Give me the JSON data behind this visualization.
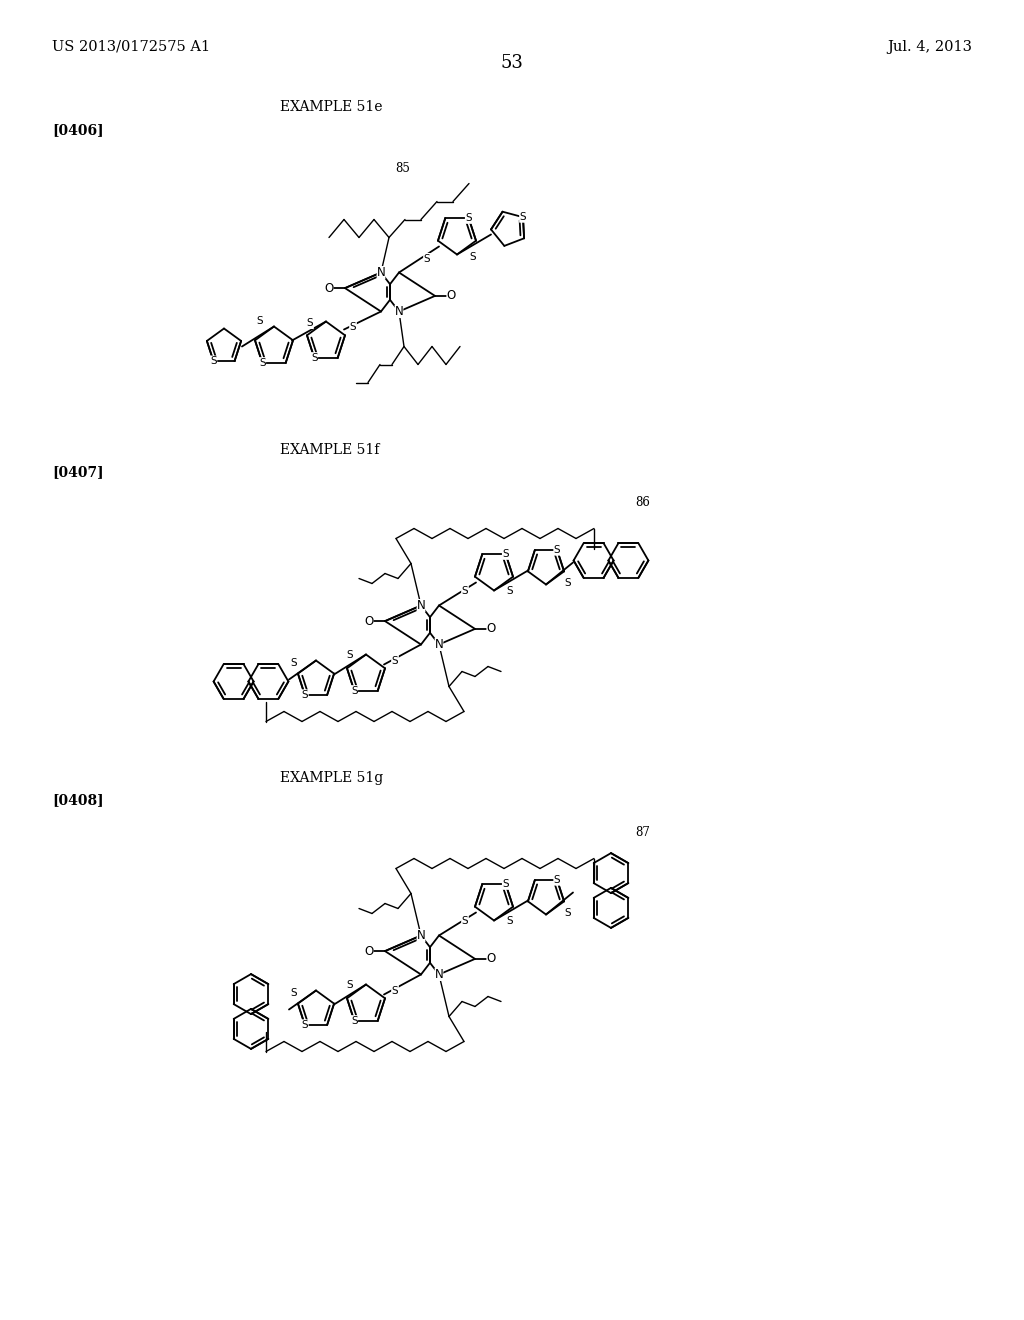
{
  "background_color": "#ffffff",
  "header_left": "US 2013/0172575 A1",
  "header_right": "Jul. 4, 2013",
  "page_number": "53",
  "example_51e": {
    "label": "EXAMPLE 51e",
    "ref": "[0406]",
    "num": "85"
  },
  "example_51f": {
    "label": "EXAMPLE 51f",
    "ref": "[0407]",
    "num": "86"
  },
  "example_51g": {
    "label": "EXAMPLE 51g",
    "ref": "[0408]",
    "num": "87"
  }
}
